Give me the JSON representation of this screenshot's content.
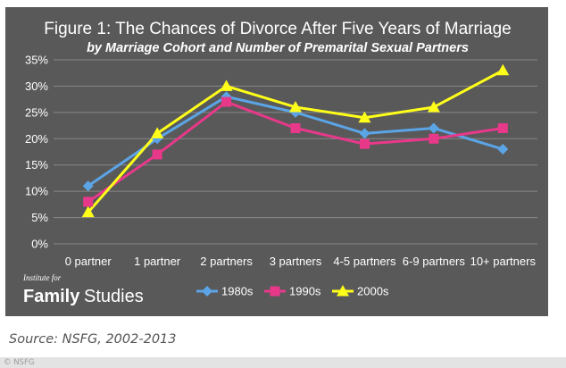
{
  "chart_data": {
    "type": "line",
    "title": "Figure 1: The Chances of Divorce After Five Years of Marriage",
    "subtitle": "by Marriage Cohort and Number of Premarital Sexual Partners",
    "xlabel": "",
    "ylabel": "",
    "categories": [
      "0 partner",
      "1 partner",
      "2 partners",
      "3 partners",
      "4-5 partners",
      "6-9 partners",
      "10+ partners"
    ],
    "ylim": [
      0,
      35
    ],
    "yticks": [
      0,
      5,
      10,
      15,
      20,
      25,
      30,
      35
    ],
    "ytick_labels": [
      "0%",
      "5%",
      "10%",
      "15%",
      "20%",
      "25%",
      "30%",
      "35%"
    ],
    "grid": "horizontal",
    "legend_position": "bottom",
    "series": [
      {
        "name": "1980s",
        "color": "#5ba4e6",
        "marker": "diamond",
        "values": [
          11,
          20,
          28,
          25,
          21,
          22,
          18
        ]
      },
      {
        "name": "1990s",
        "color": "#e8388a",
        "marker": "square",
        "values": [
          8,
          17,
          27,
          22,
          19,
          20,
          22
        ]
      },
      {
        "name": "2000s",
        "color": "#ffff1a",
        "marker": "triangle",
        "values": [
          6,
          21,
          30,
          26,
          24,
          26,
          33
        ]
      }
    ]
  },
  "logo": {
    "top_text": "Institute for",
    "bold_text": "Family",
    "light_text": "Studies"
  },
  "colors": {
    "panel_background": "#595959",
    "gridline": "#888888",
    "text": "#ffffff"
  },
  "source": "Source: NSFG, 2002-2013",
  "credit": "© NSFG"
}
